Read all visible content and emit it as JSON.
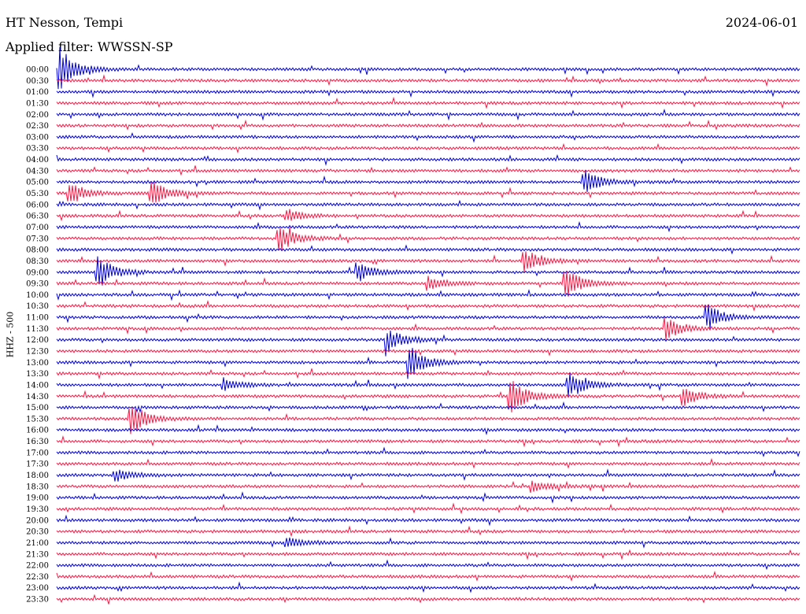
{
  "header": {
    "station": "HT Nesson, Tempi",
    "date": "2024-06-01",
    "filter": "Applied filter: WWSSN-SP",
    "channel": "HHZ - 500"
  },
  "colors": {
    "even": "#0000e0",
    "odd": "#ff1744"
  },
  "chart_data": {
    "type": "helicorder",
    "title": "HT Nesson, Tempi",
    "date": "2024-06-01",
    "ylabel": "HHZ - 500",
    "row_labels": [
      "00:00",
      "00:30",
      "01:00",
      "01:30",
      "02:00",
      "02:30",
      "03:00",
      "03:30",
      "04:00",
      "04:30",
      "05:00",
      "05:30",
      "06:00",
      "06:30",
      "07:00",
      "07:30",
      "08:00",
      "08:30",
      "09:00",
      "09:30",
      "10:00",
      "10:30",
      "11:00",
      "11:30",
      "12:00",
      "12:30",
      "13:00",
      "13:30",
      "14:00",
      "14:30",
      "15:00",
      "15:30",
      "16:00",
      "16:30",
      "17:00",
      "17:30",
      "18:00",
      "18:30",
      "19:00",
      "19:30",
      "20:00",
      "20:30",
      "21:00",
      "21:30",
      "22:00",
      "22:30",
      "23:00",
      "23:30"
    ],
    "events": [
      {
        "row": 0,
        "pos": 0.005,
        "amp": 1.0
      },
      {
        "row": 10,
        "pos": 0.71,
        "amp": 0.55
      },
      {
        "row": 11,
        "pos": 0.017,
        "amp": 0.55
      },
      {
        "row": 11,
        "pos": 0.128,
        "amp": 0.6
      },
      {
        "row": 13,
        "pos": 0.31,
        "amp": 0.3
      },
      {
        "row": 15,
        "pos": 0.3,
        "amp": 0.6
      },
      {
        "row": 17,
        "pos": 0.63,
        "amp": 0.55
      },
      {
        "row": 18,
        "pos": 0.055,
        "amp": 0.75
      },
      {
        "row": 18,
        "pos": 0.405,
        "amp": 0.45
      },
      {
        "row": 19,
        "pos": 0.5,
        "amp": 0.35
      },
      {
        "row": 19,
        "pos": 0.685,
        "amp": 0.7
      },
      {
        "row": 22,
        "pos": 0.875,
        "amp": 0.6
      },
      {
        "row": 23,
        "pos": 0.82,
        "amp": 0.55
      },
      {
        "row": 24,
        "pos": 0.445,
        "amp": 0.55
      },
      {
        "row": 26,
        "pos": 0.475,
        "amp": 0.75
      },
      {
        "row": 28,
        "pos": 0.225,
        "amp": 0.3
      },
      {
        "row": 28,
        "pos": 0.69,
        "amp": 0.6
      },
      {
        "row": 29,
        "pos": 0.612,
        "amp": 0.8
      },
      {
        "row": 29,
        "pos": 0.845,
        "amp": 0.4
      },
      {
        "row": 31,
        "pos": 0.1,
        "amp": 0.75
      },
      {
        "row": 36,
        "pos": 0.08,
        "amp": 0.3
      },
      {
        "row": 37,
        "pos": 0.64,
        "amp": 0.25
      },
      {
        "row": 42,
        "pos": 0.31,
        "amp": 0.25
      }
    ]
  }
}
